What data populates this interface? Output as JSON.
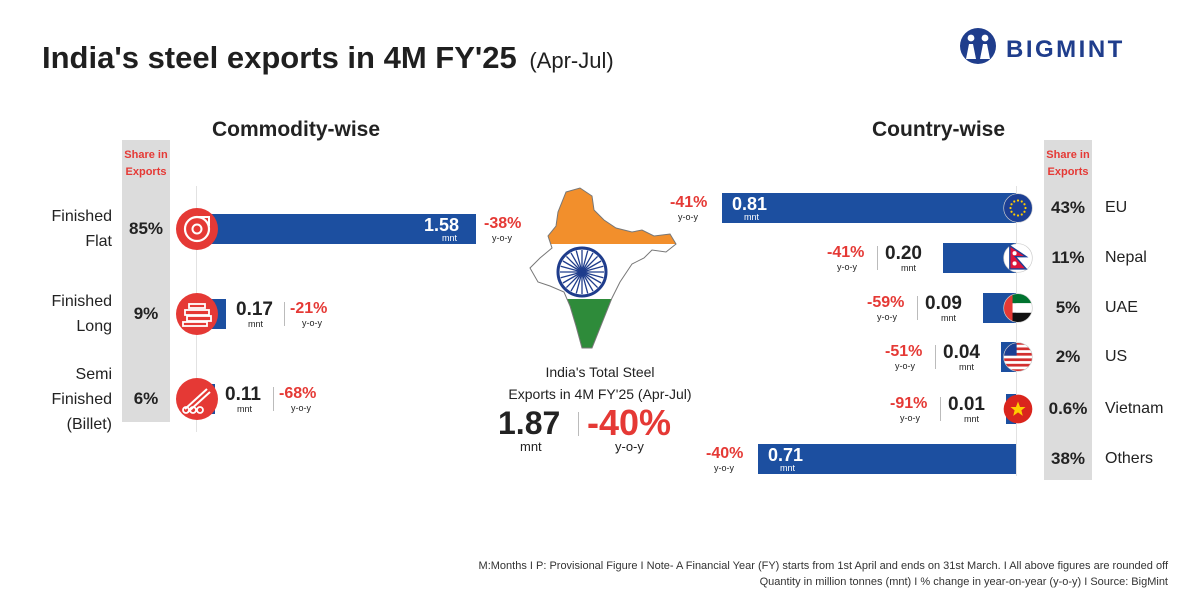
{
  "title": {
    "main": "India's steel exports in 4M FY'25",
    "sub": "(Apr-Jul)"
  },
  "brand": {
    "name": "BIGMINT",
    "color": "#1f3d8c"
  },
  "colors": {
    "bar": "#1c4fa0",
    "accent": "#e53935",
    "share_bg": "#dcdcdc"
  },
  "share_header": [
    "Share in",
    "Exports"
  ],
  "chart_data": [
    {
      "type": "bar",
      "orientation": "horizontal",
      "title": "Commodity-wise",
      "unit": "mnt",
      "change_label": "y-o-y",
      "categories": [
        "Finished Flat",
        "Finished Long",
        "Semi Finished (Billet)"
      ],
      "category_lines": [
        [
          "Finished",
          "Flat"
        ],
        [
          "Finished",
          "Long"
        ],
        [
          "Semi",
          "Finished",
          "(Billet)"
        ]
      ],
      "icons": [
        "coil-icon",
        "long-steel-icon",
        "billet-icon"
      ],
      "values": [
        1.58,
        0.17,
        0.11
      ],
      "value_labels": [
        "1.58",
        "0.17",
        "0.11"
      ],
      "changes": [
        "-38%",
        "-21%",
        "-68%"
      ],
      "shares": [
        "85%",
        "9%",
        "6%"
      ]
    },
    {
      "type": "bar",
      "orientation": "horizontal",
      "title": "Country-wise",
      "unit": "mnt",
      "change_label": "y-o-y",
      "categories": [
        "EU",
        "Nepal",
        "UAE",
        "US",
        "Vietnam",
        "Others"
      ],
      "flags": [
        "eu-flag-icon",
        "nepal-flag-icon",
        "uae-flag-icon",
        "us-flag-icon",
        "vietnam-flag-icon",
        ""
      ],
      "values": [
        0.81,
        0.2,
        0.09,
        0.04,
        0.01,
        0.71
      ],
      "value_labels": [
        "0.81",
        "0.20",
        "0.09",
        "0.04",
        "0.01",
        "0.71"
      ],
      "changes": [
        "-41%",
        "-41%",
        "-59%",
        "-51%",
        "-91%",
        "-40%"
      ],
      "shares": [
        "43%",
        "11%",
        "5%",
        "2%",
        "0.6%",
        "38%"
      ]
    }
  ],
  "total": {
    "label_lines": [
      "India's Total Steel",
      "Exports in 4M FY'25 (Apr-Jul)"
    ],
    "value": "1.87",
    "unit": "mnt",
    "change": "-40%",
    "change_label": "y-o-y"
  },
  "footnotes": [
    "M:Months  I  P: Provisional Figure  I  Note- A Financial Year (FY) starts from 1st April and ends on 31st March.  I  All above figures are rounded off",
    "Quantity in million tonnes (mnt)  I  % change in year-on-year (y-o-y)  I  Source: BigMint"
  ]
}
